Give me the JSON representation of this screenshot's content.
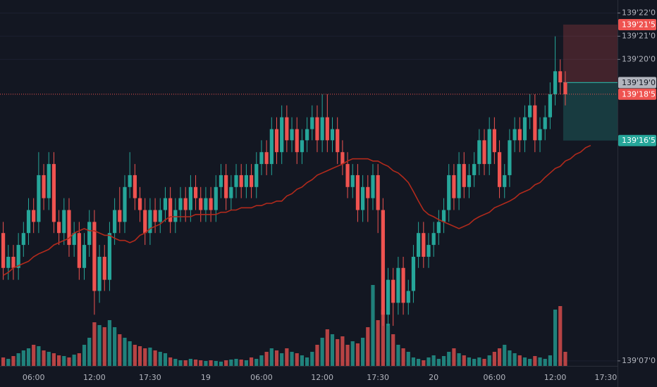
{
  "chart_data": {
    "type": "candlestick",
    "background": "#131722",
    "up_color": "#26a69a",
    "down_color": "#ef5350",
    "ma_color": "#b22a1c",
    "grid": true,
    "grid_color": "#1c2030",
    "ylim": [
      139.212,
      139.705
    ],
    "yticks": [
      {
        "value": 139.6875,
        "label": "139'22'0"
      },
      {
        "value": 139.65625,
        "label": "139'21'0"
      },
      {
        "value": 139.625,
        "label": "139'20'0"
      },
      {
        "value": 139.21875,
        "label": "139'07'0"
      }
    ],
    "vlim": [
      0,
      120
    ],
    "categories": [
      null,
      null,
      null,
      null,
      null,
      null,
      "06:00",
      null,
      null,
      null,
      null,
      null,
      null,
      null,
      null,
      null,
      null,
      null,
      "12:00",
      null,
      null,
      null,
      null,
      null,
      null,
      null,
      null,
      null,
      null,
      "17:30",
      null,
      null,
      null,
      null,
      null,
      null,
      null,
      null,
      null,
      null,
      "19",
      null,
      null,
      null,
      null,
      null,
      null,
      null,
      null,
      null,
      null,
      "06:00",
      null,
      null,
      null,
      null,
      null,
      null,
      null,
      null,
      null,
      null,
      null,
      "12:00",
      null,
      null,
      null,
      null,
      null,
      null,
      null,
      null,
      null,
      null,
      "17:30",
      null,
      null,
      null,
      null,
      null,
      null,
      null,
      null,
      null,
      null,
      "20",
      null,
      null,
      null,
      null,
      null,
      null,
      null,
      null,
      null,
      null,
      null,
      "06:00",
      null,
      null,
      null,
      null,
      null,
      null,
      null,
      null,
      null,
      null,
      null,
      "12:00",
      null,
      null,
      null,
      null,
      null,
      null,
      null,
      null,
      null,
      "17:30"
    ],
    "open": [
      139.391,
      139.344,
      139.359,
      139.344,
      139.375,
      139.391,
      139.422,
      139.406,
      139.469,
      139.438,
      139.484,
      139.406,
      139.391,
      139.422,
      139.375,
      139.391,
      139.344,
      139.375,
      139.406,
      139.313,
      139.359,
      139.328,
      139.391,
      139.422,
      139.406,
      139.453,
      139.469,
      139.438,
      139.422,
      139.391,
      139.422,
      139.406,
      139.422,
      139.438,
      139.406,
      139.422,
      139.438,
      139.422,
      139.453,
      139.438,
      139.422,
      139.438,
      139.422,
      139.453,
      139.469,
      139.438,
      139.453,
      139.469,
      139.453,
      139.469,
      139.453,
      139.484,
      139.5,
      139.484,
      139.531,
      139.5,
      139.547,
      139.516,
      139.531,
      139.5,
      139.516,
      139.531,
      139.547,
      139.516,
      139.547,
      139.516,
      139.531,
      139.5,
      139.484,
      139.453,
      139.469,
      139.422,
      139.453,
      139.438,
      139.469,
      139.422,
      139.281,
      139.328,
      139.297,
      139.344,
      139.297,
      139.313,
      139.359,
      139.391,
      139.359,
      139.375,
      139.391,
      139.406,
      139.422,
      139.469,
      139.438,
      139.484,
      139.453,
      139.469,
      139.484,
      139.516,
      139.484,
      139.531,
      139.5,
      139.453,
      139.469,
      139.516,
      139.531,
      139.516,
      139.547,
      139.563,
      139.516,
      139.531,
      139.547,
      139.578,
      139.609,
      139.594,
      null,
      null,
      null,
      null,
      null,
      null,
      null,
      null
    ],
    "high": [
      139.406,
      139.375,
      139.375,
      139.391,
      139.406,
      139.438,
      139.438,
      139.5,
      139.484,
      139.5,
      139.5,
      139.422,
      139.438,
      139.438,
      139.406,
      139.406,
      139.391,
      139.422,
      139.422,
      139.375,
      139.375,
      139.406,
      139.438,
      139.453,
      139.469,
      139.5,
      139.484,
      139.453,
      139.438,
      139.438,
      139.438,
      139.438,
      139.453,
      139.453,
      139.438,
      139.453,
      139.453,
      139.469,
      139.469,
      139.453,
      139.453,
      139.453,
      139.469,
      139.484,
      139.484,
      139.469,
      139.484,
      139.484,
      139.484,
      139.484,
      139.5,
      139.516,
      139.516,
      139.547,
      139.547,
      139.563,
      139.563,
      139.547,
      139.547,
      139.531,
      139.547,
      139.563,
      139.563,
      139.578,
      139.578,
      139.547,
      139.547,
      139.516,
      139.5,
      139.484,
      139.484,
      139.469,
      139.469,
      139.484,
      139.484,
      139.438,
      139.344,
      139.344,
      139.359,
      139.359,
      139.328,
      139.375,
      139.406,
      139.406,
      139.391,
      139.406,
      139.422,
      139.438,
      139.484,
      139.484,
      139.5,
      139.5,
      139.484,
      139.5,
      139.531,
      139.531,
      139.547,
      139.547,
      139.516,
      139.484,
      139.531,
      139.547,
      139.547,
      139.563,
      139.578,
      139.578,
      139.547,
      139.563,
      139.594,
      139.656,
      139.625,
      139.609,
      null,
      null,
      null,
      null,
      null,
      null,
      null,
      null
    ],
    "low": [
      139.328,
      139.328,
      139.328,
      139.328,
      139.359,
      139.375,
      139.391,
      139.391,
      139.422,
      139.422,
      139.391,
      139.375,
      139.375,
      139.359,
      139.359,
      139.328,
      139.328,
      139.359,
      139.281,
      139.297,
      139.313,
      139.313,
      139.375,
      139.391,
      139.391,
      139.438,
      139.422,
      139.406,
      139.375,
      139.375,
      139.391,
      139.391,
      139.406,
      139.391,
      139.391,
      139.406,
      139.406,
      139.406,
      139.422,
      139.406,
      139.406,
      139.406,
      139.406,
      139.438,
      139.422,
      139.422,
      139.438,
      139.438,
      139.438,
      139.438,
      139.438,
      139.469,
      139.469,
      139.469,
      139.484,
      139.484,
      139.5,
      139.5,
      139.484,
      139.484,
      139.5,
      139.516,
      139.5,
      139.5,
      139.5,
      139.5,
      139.484,
      139.469,
      139.438,
      139.438,
      139.406,
      139.406,
      139.406,
      139.422,
      139.391,
      139.266,
      139.266,
      139.266,
      139.281,
      139.281,
      139.281,
      139.297,
      139.344,
      139.344,
      139.344,
      139.359,
      139.375,
      139.391,
      139.406,
      139.422,
      139.422,
      139.438,
      139.438,
      139.453,
      139.469,
      139.469,
      139.469,
      139.484,
      139.438,
      139.438,
      139.453,
      139.5,
      139.5,
      139.5,
      139.531,
      139.5,
      139.5,
      139.516,
      139.531,
      139.563,
      139.578,
      139.563,
      null,
      null,
      null,
      null,
      null,
      null,
      null,
      null
    ],
    "close": [
      139.344,
      139.359,
      139.344,
      139.375,
      139.391,
      139.422,
      139.406,
      139.469,
      139.438,
      139.484,
      139.406,
      139.391,
      139.422,
      139.375,
      139.391,
      139.344,
      139.375,
      139.406,
      139.313,
      139.359,
      139.328,
      139.391,
      139.422,
      139.406,
      139.453,
      139.469,
      139.438,
      139.422,
      139.391,
      139.422,
      139.406,
      139.422,
      139.438,
      139.406,
      139.422,
      139.438,
      139.422,
      139.453,
      139.438,
      139.422,
      139.438,
      139.422,
      139.453,
      139.469,
      139.438,
      139.453,
      139.469,
      139.453,
      139.469,
      139.453,
      139.484,
      139.5,
      139.484,
      139.531,
      139.5,
      139.547,
      139.516,
      139.531,
      139.5,
      139.516,
      139.531,
      139.547,
      139.516,
      139.547,
      139.516,
      139.531,
      139.5,
      139.484,
      139.453,
      139.469,
      139.422,
      139.453,
      139.438,
      139.469,
      139.422,
      139.281,
      139.328,
      139.297,
      139.344,
      139.297,
      139.313,
      139.359,
      139.391,
      139.359,
      139.375,
      139.391,
      139.406,
      139.422,
      139.469,
      139.438,
      139.484,
      139.453,
      139.469,
      139.484,
      139.516,
      139.484,
      139.531,
      139.5,
      139.453,
      139.469,
      139.516,
      139.531,
      139.516,
      139.547,
      139.563,
      139.516,
      139.531,
      139.547,
      139.578,
      139.609,
      139.594,
      139.578,
      null,
      null,
      null,
      null,
      null,
      null,
      null,
      null
    ],
    "volume": [
      12,
      10,
      14,
      18,
      22,
      25,
      30,
      28,
      22,
      20,
      18,
      15,
      14,
      12,
      16,
      18,
      30,
      40,
      62,
      58,
      55,
      65,
      55,
      45,
      40,
      35,
      30,
      28,
      25,
      26,
      22,
      20,
      18,
      12,
      10,
      8,
      8,
      10,
      9,
      8,
      7,
      8,
      7,
      6,
      8,
      9,
      10,
      9,
      8,
      12,
      10,
      15,
      20,
      25,
      22,
      18,
      25,
      20,
      18,
      15,
      12,
      20,
      30,
      40,
      52,
      45,
      38,
      42,
      30,
      35,
      32,
      40,
      55,
      115,
      65,
      80,
      60,
      45,
      30,
      25,
      20,
      12,
      10,
      8,
      12,
      15,
      10,
      14,
      20,
      25,
      18,
      15,
      12,
      10,
      12,
      10,
      15,
      20,
      25,
      30,
      22,
      18,
      15,
      12,
      10,
      14,
      12,
      10,
      15,
      80,
      85,
      20,
      null,
      null,
      null,
      null,
      null,
      null,
      null,
      null
    ],
    "ma": [
      139.334,
      139.338,
      139.344,
      139.347,
      139.35,
      139.353,
      139.359,
      139.363,
      139.366,
      139.369,
      139.375,
      139.378,
      139.381,
      139.384,
      139.391,
      139.394,
      139.397,
      139.394,
      139.394,
      139.391,
      139.388,
      139.388,
      139.384,
      139.381,
      139.381,
      139.378,
      139.381,
      139.388,
      139.391,
      139.397,
      139.4,
      139.403,
      139.409,
      139.413,
      139.413,
      139.413,
      139.413,
      139.413,
      139.416,
      139.416,
      139.416,
      139.416,
      139.416,
      139.419,
      139.419,
      139.422,
      139.422,
      139.425,
      139.425,
      139.425,
      139.428,
      139.428,
      139.431,
      139.431,
      139.434,
      139.434,
      139.441,
      139.444,
      139.45,
      139.453,
      139.459,
      139.463,
      139.469,
      139.472,
      139.475,
      139.478,
      139.481,
      139.484,
      139.488,
      139.491,
      139.491,
      139.491,
      139.491,
      139.488,
      139.488,
      139.484,
      139.481,
      139.475,
      139.472,
      139.466,
      139.459,
      139.447,
      139.434,
      139.422,
      139.416,
      139.413,
      139.409,
      139.406,
      139.403,
      139.4,
      139.397,
      139.4,
      139.403,
      139.409,
      139.413,
      139.416,
      139.419,
      139.425,
      139.428,
      139.431,
      139.434,
      139.438,
      139.444,
      139.447,
      139.45,
      139.456,
      139.459,
      139.466,
      139.472,
      139.478,
      139.481,
      139.488,
      139.491,
      139.497,
      139.5,
      139.506,
      139.509,
      null,
      null,
      null
    ],
    "position": {
      "stop": {
        "value": 139.671875,
        "label": "139'21'5"
      },
      "entry": {
        "value": 139.59375,
        "label": "139'19'0"
      },
      "target": {
        "value": 139.515625,
        "label": "139'16'5"
      },
      "stop_color": "#ef5350",
      "entry_color": "#b2b5be",
      "target_color": "#26a69a"
    },
    "last_price": {
      "value": 139.578125,
      "label": "139'18'5",
      "color": "#ef5350"
    }
  }
}
